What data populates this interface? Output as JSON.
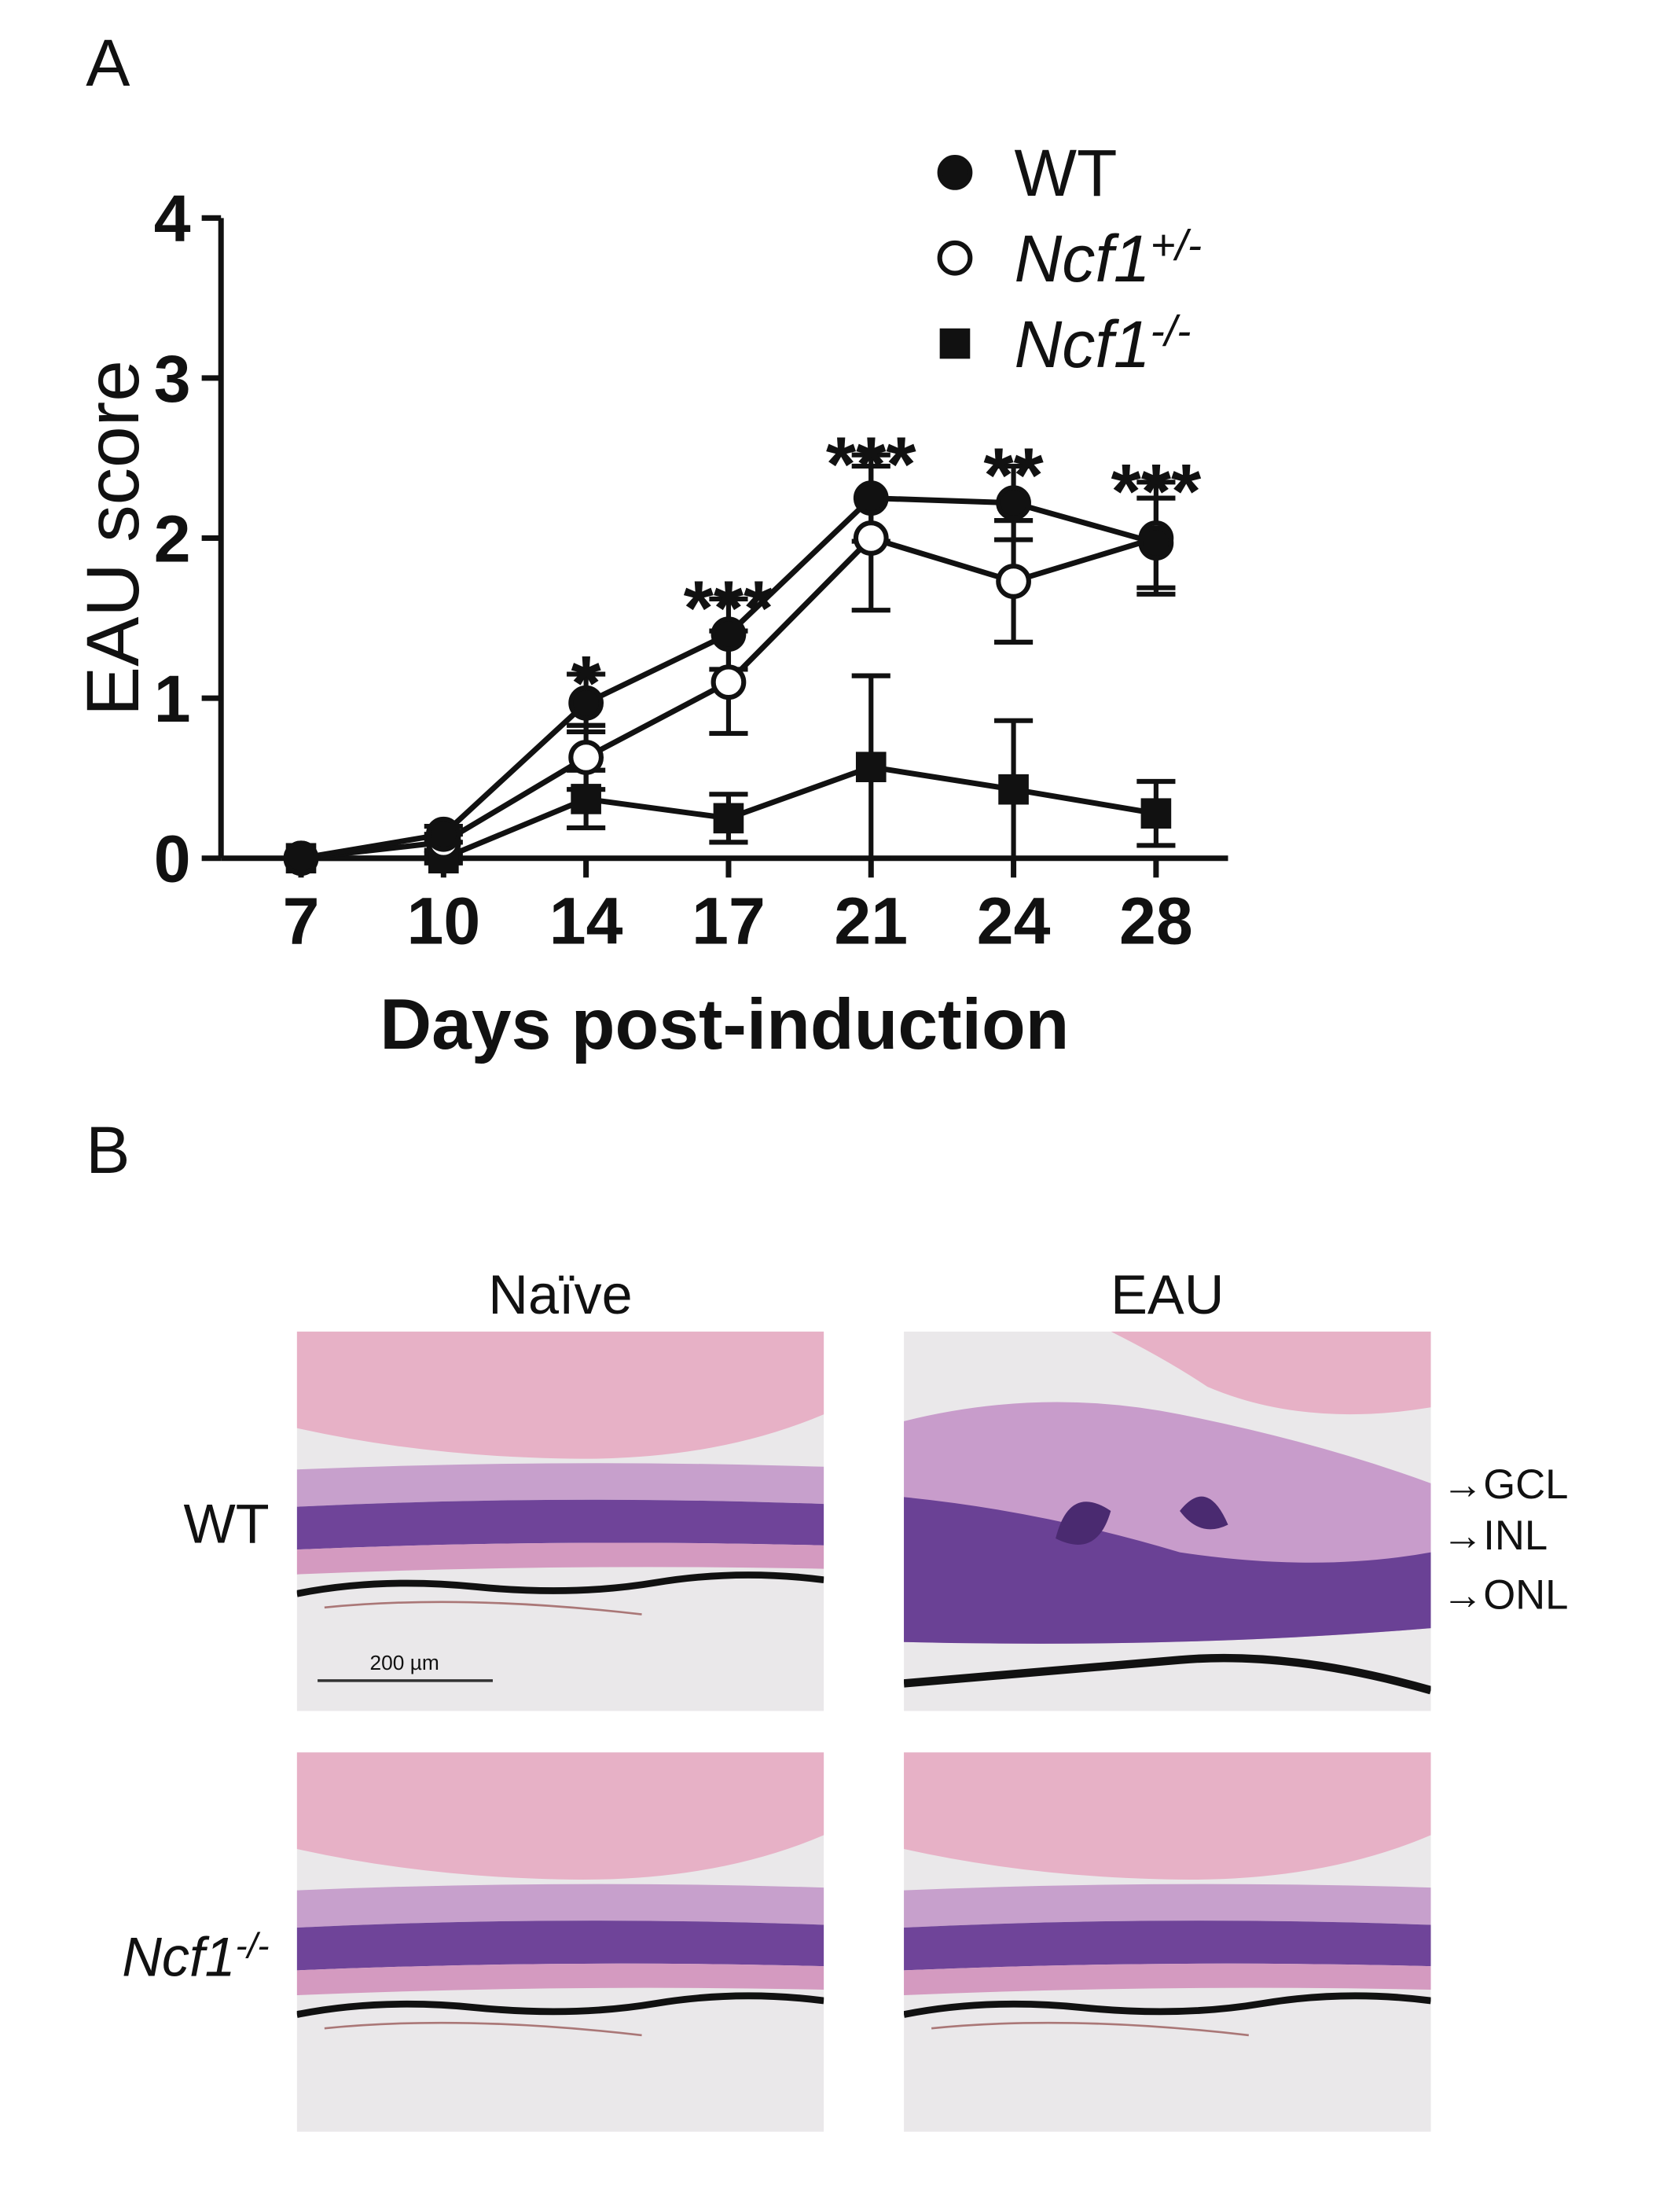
{
  "panel_a": {
    "label": "A"
  },
  "chart_data": {
    "type": "line",
    "x_label": "Days post-induction",
    "y_label": "EAU  score",
    "categories": [
      "7",
      "10",
      "14",
      "17",
      "21",
      "24",
      "28"
    ],
    "ylim": [
      0,
      4
    ],
    "yticks": [
      0,
      1,
      2,
      3,
      4
    ],
    "annotations": [
      null,
      null,
      "*",
      "***",
      "***",
      "**",
      "***"
    ],
    "series": [
      {
        "name": "WT",
        "color": "#111111",
        "marker": "filled-circle",
        "values": [
          0,
          0.15,
          0.97,
          1.4,
          2.25,
          2.22,
          1.97
        ],
        "errors": [
          0,
          0.05,
          0.18,
          0.22,
          0.27,
          0.23,
          0.28
        ]
      },
      {
        "name": "Ncf1+/-",
        "color": "#111111",
        "marker": "open-circle",
        "values": [
          0,
          0.1,
          0.63,
          1.1,
          2.0,
          1.73,
          2.0
        ],
        "errors": [
          0,
          0.05,
          0.2,
          0.32,
          0.45,
          0.38,
          0.35
        ]
      },
      {
        "name": "Ncf1-/-",
        "color": "#111111",
        "marker": "square",
        "values": [
          0,
          0,
          0.37,
          0.25,
          0.57,
          0.43,
          0.28
        ],
        "errors": [
          0,
          0.03,
          0.18,
          0.15,
          0.57,
          0.43,
          0.2
        ]
      }
    ]
  },
  "panel_b": {
    "label": "B",
    "columns": [
      "Naïve",
      "EAU"
    ],
    "rows": [
      "WT",
      "Ncf1-/-"
    ],
    "layer_labels": [
      "GCL",
      "INL",
      "ONL"
    ],
    "scale_bar": "200 µm"
  }
}
